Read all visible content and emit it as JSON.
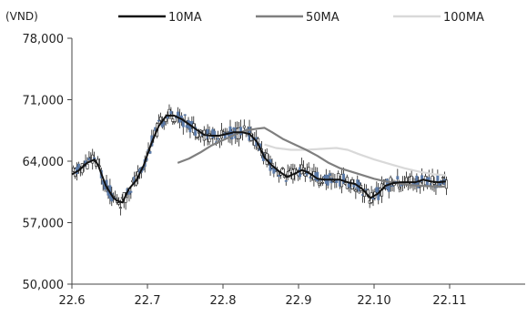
{
  "chart_data": {
    "type": "candlestick-with-lines",
    "unit_label": "(VND)",
    "x_tick_labels": [
      "22.6",
      "22.7",
      "22.8",
      "22.9",
      "22.10",
      "22.11"
    ],
    "y_tick_labels": [
      "78,000",
      "71,000",
      "64,000",
      "57,000",
      "50,000"
    ],
    "y_ticks": [
      78000,
      71000,
      64000,
      57000,
      50000
    ],
    "ylim": [
      50000,
      78000
    ],
    "x_domain": [
      0,
      6
    ],
    "grid": false,
    "legend_position": "top",
    "series": [
      {
        "name": "10MA",
        "color": "#111111",
        "points": [
          [
            0.0,
            62500
          ],
          [
            0.1,
            63000
          ],
          [
            0.2,
            63800
          ],
          [
            0.3,
            64200
          ],
          [
            0.35,
            63500
          ],
          [
            0.45,
            61200
          ],
          [
            0.55,
            59800
          ],
          [
            0.6,
            59500
          ],
          [
            0.67,
            59300
          ],
          [
            0.75,
            60800
          ],
          [
            0.85,
            61800
          ],
          [
            0.95,
            63500
          ],
          [
            1.05,
            66000
          ],
          [
            1.15,
            68000
          ],
          [
            1.25,
            69200
          ],
          [
            1.35,
            69200
          ],
          [
            1.45,
            68800
          ],
          [
            1.55,
            68200
          ],
          [
            1.65,
            67600
          ],
          [
            1.75,
            67000
          ],
          [
            1.85,
            66900
          ],
          [
            1.95,
            66900
          ],
          [
            2.05,
            67100
          ],
          [
            2.15,
            67300
          ],
          [
            2.25,
            67300
          ],
          [
            2.35,
            67100
          ],
          [
            2.45,
            66200
          ],
          [
            2.55,
            64400
          ],
          [
            2.65,
            63500
          ],
          [
            2.75,
            62800
          ],
          [
            2.85,
            62200
          ],
          [
            2.95,
            62600
          ],
          [
            3.05,
            63000
          ],
          [
            3.15,
            62600
          ],
          [
            3.25,
            62000
          ],
          [
            3.35,
            61900
          ],
          [
            3.45,
            61900
          ],
          [
            3.55,
            61900
          ],
          [
            3.65,
            61600
          ],
          [
            3.75,
            61400
          ],
          [
            3.85,
            60800
          ],
          [
            3.95,
            59800
          ],
          [
            4.05,
            60300
          ],
          [
            4.15,
            61200
          ],
          [
            4.25,
            61500
          ],
          [
            4.35,
            61600
          ],
          [
            4.45,
            61600
          ],
          [
            4.55,
            61600
          ],
          [
            4.65,
            61900
          ],
          [
            4.75,
            61700
          ],
          [
            4.85,
            61600
          ],
          [
            4.95,
            61700
          ]
        ]
      },
      {
        "name": "50MA",
        "color": "#7f7f7f",
        "points": [
          [
            1.4,
            63800
          ],
          [
            1.55,
            64300
          ],
          [
            1.7,
            65000
          ],
          [
            1.85,
            65800
          ],
          [
            2.0,
            66400
          ],
          [
            2.15,
            67000
          ],
          [
            2.3,
            67500
          ],
          [
            2.45,
            67700
          ],
          [
            2.55,
            67800
          ],
          [
            2.65,
            67300
          ],
          [
            2.8,
            66500
          ],
          [
            2.95,
            65900
          ],
          [
            3.1,
            65300
          ],
          [
            3.25,
            64600
          ],
          [
            3.4,
            63800
          ],
          [
            3.55,
            63200
          ],
          [
            3.7,
            62800
          ],
          [
            3.85,
            62400
          ],
          [
            4.0,
            62000
          ],
          [
            4.15,
            61700
          ],
          [
            4.3,
            61500
          ],
          [
            4.45,
            61300
          ],
          [
            4.6,
            61200
          ],
          [
            4.75,
            61150
          ],
          [
            4.95,
            61100
          ]
        ]
      },
      {
        "name": "100MA",
        "color": "#d9d9d9",
        "points": [
          [
            2.55,
            65900
          ],
          [
            2.7,
            65500
          ],
          [
            2.9,
            65300
          ],
          [
            3.1,
            65300
          ],
          [
            3.3,
            65400
          ],
          [
            3.5,
            65500
          ],
          [
            3.65,
            65300
          ],
          [
            3.8,
            64800
          ],
          [
            4.0,
            64200
          ],
          [
            4.2,
            63700
          ],
          [
            4.4,
            63200
          ],
          [
            4.6,
            62800
          ],
          [
            4.8,
            62500
          ],
          [
            4.95,
            62400
          ]
        ]
      }
    ]
  }
}
